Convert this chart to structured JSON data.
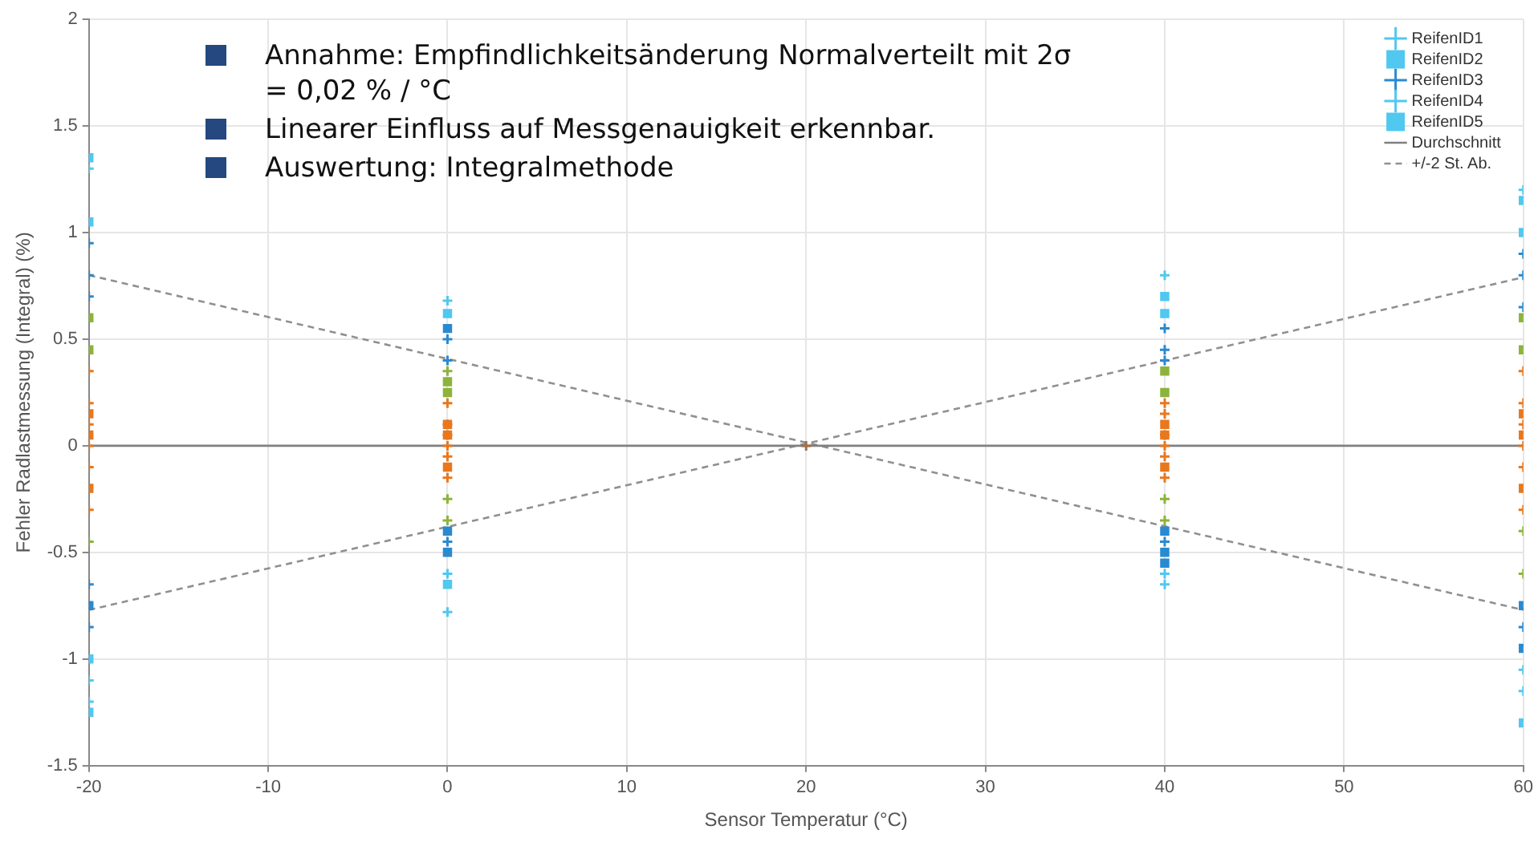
{
  "chart_data": {
    "type": "scatter",
    "xlabel": "Sensor Temperatur (°C)",
    "ylabel": "Fehler Radlastmessung (Integral) (%)",
    "annotations": [
      "Annahme: Empfindlichkeitsänderung Normalverteilt mit 2σ = 0,02 % / °C",
      "Linearer Einfluss auf Messgenauigkeit erkennbar.",
      "Auswertung: Integralmethode"
    ],
    "xlim": [
      -20,
      60
    ],
    "xticks": [
      -20,
      -10,
      0,
      10,
      20,
      30,
      40,
      50,
      60
    ],
    "ylim": [
      -1.5,
      2
    ],
    "yticks": [
      -1.5,
      -1,
      -0.5,
      0,
      0.5,
      1,
      1.5,
      2
    ],
    "grid": true,
    "legend": "top right",
    "series": [
      {
        "name": "ReifenID1",
        "marker": "cross",
        "color": "#8a9cc0",
        "x": [
          -20,
          -20,
          -20,
          -20,
          -20,
          0,
          0,
          0,
          0,
          0,
          20,
          40,
          40,
          40,
          40,
          40,
          60,
          60,
          60,
          60,
          60
        ],
        "values": [
          -1.2,
          -0.45,
          0,
          0.35,
          1.3,
          -0.6,
          -0.25,
          0,
          0.2,
          0.68,
          0,
          -0.6,
          -0.25,
          0,
          0.2,
          0.8,
          -1.15,
          -0.4,
          0,
          0.35,
          1.2
        ],
        "colors": [
          "#50c8f0",
          "#8cb43c",
          "#e8781e",
          "#e8781e",
          "#50c8f0",
          "#50c8f0",
          "#8cb43c",
          "#e8781e",
          "#e8781e",
          "#50c8f0",
          "#a0704a",
          "#50c8f0",
          "#8cb43c",
          "#e8781e",
          "#e8781e",
          "#50c8f0",
          "#50c8f0",
          "#8cb43c",
          "#e8781e",
          "#e8781e",
          "#50c8f0"
        ]
      },
      {
        "name": "ReifenID2",
        "marker": "square",
        "color": "#b0c0e0",
        "x": [
          -20,
          -20,
          -20,
          -20,
          -20,
          0,
          0,
          0,
          0,
          0,
          40,
          40,
          40,
          40,
          40,
          60,
          60,
          60,
          60,
          60
        ],
        "values": [
          -1.0,
          -0.2,
          0.15,
          0.6,
          1.05,
          -0.5,
          -0.1,
          0.1,
          0.3,
          0.55,
          -0.55,
          -0.1,
          0.1,
          0.35,
          0.62,
          -0.95,
          -0.2,
          0.15,
          0.6,
          1.0
        ],
        "colors": [
          "#50c8f0",
          "#e8781e",
          "#e8781e",
          "#8cb43c",
          "#50c8f0",
          "#2a8ad0",
          "#e8781e",
          "#e8781e",
          "#8cb43c",
          "#2a8ad0",
          "#2a8ad0",
          "#e8781e",
          "#e8781e",
          "#8cb43c",
          "#50c8f0",
          "#2a8ad0",
          "#e8781e",
          "#e8781e",
          "#8cb43c",
          "#50c8f0"
        ]
      },
      {
        "name": "ReifenID3",
        "marker": "cross",
        "color": "#3050a0",
        "x": [
          -20,
          -20,
          -20,
          -20,
          -20,
          0,
          0,
          0,
          0,
          0,
          40,
          40,
          40,
          40,
          40,
          60,
          60,
          60,
          60,
          60
        ],
        "values": [
          -0.85,
          -0.1,
          0.2,
          0.7,
          0.95,
          -0.45,
          -0.05,
          0.1,
          0.35,
          0.5,
          -0.45,
          -0.05,
          0.15,
          0.4,
          0.55,
          -0.85,
          -0.1,
          0.2,
          0.65,
          0.9
        ],
        "colors": [
          "#2a8ad0",
          "#e8781e",
          "#e8781e",
          "#2a8ad0",
          "#2a8ad0",
          "#2a8ad0",
          "#e8781e",
          "#e8781e",
          "#8cb43c",
          "#2a8ad0",
          "#2a8ad0",
          "#e8781e",
          "#e8781e",
          "#2a8ad0",
          "#2a8ad0",
          "#2a8ad0",
          "#e8781e",
          "#e8781e",
          "#2a8ad0",
          "#2a8ad0"
        ]
      },
      {
        "name": "ReifenID4",
        "marker": "cross",
        "color": "#a0b0d0",
        "x": [
          -20,
          -20,
          -20,
          -20,
          -20,
          0,
          0,
          0,
          0,
          0,
          40,
          40,
          40,
          40,
          40,
          60,
          60,
          60,
          60,
          60
        ],
        "values": [
          -1.1,
          -0.65,
          -0.3,
          0.1,
          0.8,
          -0.78,
          -0.35,
          -0.15,
          0.05,
          0.4,
          -0.65,
          -0.35,
          -0.15,
          0.05,
          0.45,
          -1.05,
          -0.6,
          -0.3,
          0.1,
          0.8
        ],
        "colors": [
          "#50c8f0",
          "#2a8ad0",
          "#e8781e",
          "#e8781e",
          "#2a8ad0",
          "#50c8f0",
          "#8cb43c",
          "#e8781e",
          "#e8781e",
          "#2a8ad0",
          "#50c8f0",
          "#8cb43c",
          "#e8781e",
          "#e8781e",
          "#2a8ad0",
          "#50c8f0",
          "#8cb43c",
          "#e8781e",
          "#e8781e",
          "#2a8ad0"
        ]
      },
      {
        "name": "ReifenID5",
        "marker": "square",
        "color": "#7090d0",
        "x": [
          -20,
          -20,
          -20,
          -20,
          -20,
          0,
          0,
          0,
          0,
          0,
          40,
          40,
          40,
          40,
          40,
          60,
          60,
          60,
          60,
          60
        ],
        "values": [
          -1.25,
          -0.75,
          0.05,
          0.45,
          1.35,
          -0.65,
          -0.4,
          0.05,
          0.25,
          0.62,
          -0.5,
          -0.4,
          0.05,
          0.25,
          0.7,
          -1.3,
          -0.75,
          0.05,
          0.45,
          1.15
        ],
        "colors": [
          "#50c8f0",
          "#2a8ad0",
          "#e8781e",
          "#8cb43c",
          "#50c8f0",
          "#50c8f0",
          "#2a8ad0",
          "#e8781e",
          "#8cb43c",
          "#50c8f0",
          "#2a8ad0",
          "#2a8ad0",
          "#e8781e",
          "#8cb43c",
          "#50c8f0",
          "#50c8f0",
          "#2a8ad0",
          "#e8781e",
          "#8cb43c",
          "#50c8f0"
        ]
      },
      {
        "name": "Durchschnitt",
        "type": "line",
        "marker": "none",
        "line_style": "solid",
        "color": "#808080",
        "x": [
          -20,
          60
        ],
        "values": [
          0,
          0
        ]
      },
      {
        "name": "+/-2 St. Ab.",
        "type": "line",
        "marker": "none",
        "line_style": "dashed",
        "color": "#909090",
        "x": [
          -20,
          60
        ],
        "values": [
          0.8,
          -0.77
        ]
      },
      {
        "type": "line",
        "marker": "none",
        "line_style": "dashed",
        "color": "#909090",
        "x": [
          -20,
          60
        ],
        "values": [
          -0.77,
          0.79
        ]
      }
    ]
  }
}
